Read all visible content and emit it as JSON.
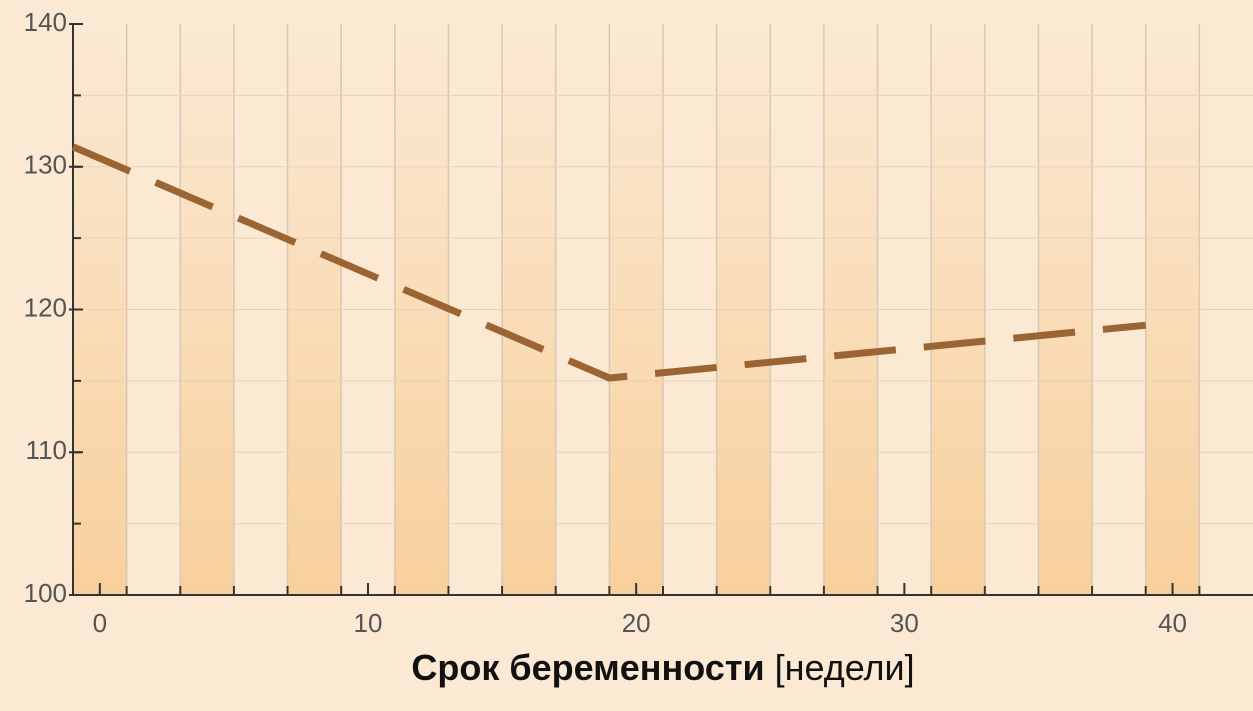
{
  "chart_data": {
    "type": "line",
    "xlabel": "Срок беременности",
    "xlabel_unit": "[недели]",
    "x": [
      -1,
      19,
      39
    ],
    "series": [
      {
        "color": "#9b6433",
        "values": [
          131.4,
          115.2,
          118.9
        ]
      }
    ],
    "xlim": [
      -1,
      43
    ],
    "xticks": [
      0,
      10,
      20,
      30,
      40
    ],
    "ylim": [
      100,
      140
    ],
    "yticks": [
      100,
      110,
      120,
      130,
      140
    ],
    "grid": true
  }
}
